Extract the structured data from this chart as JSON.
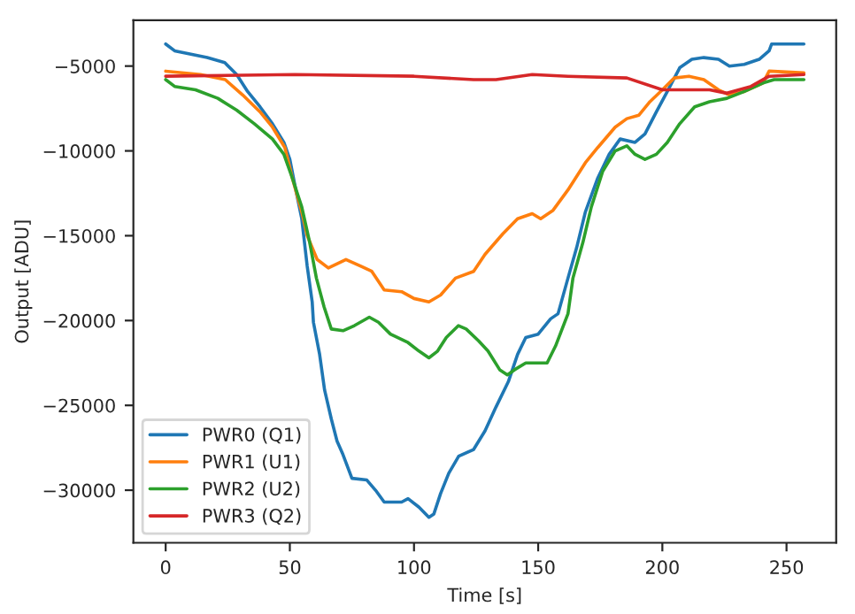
{
  "chart_data": {
    "type": "line",
    "xlabel": "Time [s]",
    "ylabel": "Output [ADU]",
    "xlim": [
      -13,
      270
    ],
    "xticks": [
      0,
      50,
      100,
      150,
      200,
      250
    ],
    "ylim": [
      -33100,
      -2300
    ],
    "yticks": [
      {
        "value": -30000,
        "label": "−30000"
      },
      {
        "value": -25000,
        "label": "−25000"
      },
      {
        "value": -20000,
        "label": "−20000"
      },
      {
        "value": -15000,
        "label": "−15000"
      },
      {
        "value": -10000,
        "label": "−10000"
      },
      {
        "value": -5000,
        "label": "−5000"
      }
    ],
    "grid": false,
    "legend": "bottom left",
    "series": [
      {
        "name": "PWR0 (Q1)",
        "color": "#1f77b4",
        "x": [
          0,
          3.6,
          16.7,
          23.8,
          28.6,
          33,
          38,
          43,
          47.6,
          50,
          52.4,
          54.8,
          57,
          59,
          59.5,
          62,
          64,
          66.7,
          69,
          71.4,
          75,
          81,
          84.5,
          88,
          95,
          97.6,
          102,
          106,
          108,
          110.7,
          114,
          118,
          124,
          128.6,
          133,
          138,
          141.7,
          145,
          150,
          155,
          158,
          162,
          165.5,
          169,
          174,
          178.6,
          183,
          189,
          193,
          197.6,
          202,
          207,
          211.9,
          216.7,
          222.6,
          227,
          233,
          239,
          243,
          244,
          257
        ],
        "values": [
          -3700,
          -4100,
          -4500,
          -4800,
          -5500,
          -6500,
          -7400,
          -8400,
          -9500,
          -10500,
          -12300,
          -14000,
          -16800,
          -18900,
          -20100,
          -22000,
          -24100,
          -25800,
          -27100,
          -27900,
          -29300,
          -29400,
          -30000,
          -30700,
          -30700,
          -30500,
          -31000,
          -31600,
          -31400,
          -30200,
          -29000,
          -28000,
          -27600,
          -26500,
          -25100,
          -23600,
          -22000,
          -21000,
          -20800,
          -19900,
          -19600,
          -17500,
          -15700,
          -13600,
          -11600,
          -10200,
          -9300,
          -9500,
          -9000,
          -7700,
          -6500,
          -5100,
          -4600,
          -4500,
          -4600,
          -5000,
          -4900,
          -4600,
          -4100,
          -3700,
          -3700
        ]
      },
      {
        "name": "PWR1 (U1)",
        "color": "#ff7f0e",
        "x": [
          0,
          14,
          24,
          31,
          38,
          43,
          48,
          51,
          55,
          57,
          61,
          65.5,
          72.6,
          78.6,
          83,
          88,
          95,
          100,
          106,
          110.7,
          116.7,
          124,
          128.6,
          135.7,
          141.7,
          147.6,
          151,
          156,
          162,
          169,
          174,
          181,
          185.7,
          190.5,
          195,
          200,
          204.8,
          210.7,
          216.7,
          222.6,
          227,
          233,
          240.5,
          243,
          257
        ],
        "values": [
          -5300,
          -5500,
          -5800,
          -6700,
          -7700,
          -8600,
          -9800,
          -11600,
          -13700,
          -15000,
          -16400,
          -16900,
          -16400,
          -16800,
          -17100,
          -18200,
          -18300,
          -18700,
          -18900,
          -18500,
          -17500,
          -17100,
          -16100,
          -14900,
          -14000,
          -13700,
          -14000,
          -13500,
          -12300,
          -10700,
          -9800,
          -8600,
          -8100,
          -7900,
          -7100,
          -6400,
          -5700,
          -5600,
          -5800,
          -6400,
          -6700,
          -6500,
          -6000,
          -5300,
          -5400
        ]
      },
      {
        "name": "PWR2 (U2)",
        "color": "#2ca02c",
        "x": [
          0,
          3.6,
          12,
          21,
          28.6,
          35.7,
          43,
          47.6,
          51,
          54.8,
          58,
          60.7,
          63.8,
          66.7,
          71.4,
          76,
          82,
          85.7,
          90.5,
          97.6,
          102,
          106,
          109.5,
          113,
          117.9,
          121,
          126,
          129.8,
          134.5,
          137.6,
          140.5,
          145,
          153.6,
          157,
          162,
          164,
          168,
          171.4,
          176,
          181,
          185.7,
          189,
          193,
          197.6,
          202,
          207,
          213,
          219,
          226,
          233,
          240.5,
          245,
          257
        ],
        "values": [
          -5800,
          -6200,
          -6400,
          -6900,
          -7600,
          -8400,
          -9300,
          -10200,
          -11600,
          -13300,
          -15400,
          -17500,
          -19200,
          -20500,
          -20600,
          -20300,
          -19800,
          -20100,
          -20800,
          -21300,
          -21800,
          -22200,
          -21800,
          -21000,
          -20300,
          -20500,
          -21200,
          -21800,
          -22900,
          -23200,
          -22900,
          -22500,
          -22500,
          -21500,
          -19600,
          -17500,
          -15400,
          -13300,
          -11200,
          -10000,
          -9700,
          -10200,
          -10500,
          -10200,
          -9500,
          -8400,
          -7400,
          -7100,
          -6900,
          -6500,
          -6000,
          -5800,
          -5800
        ]
      },
      {
        "name": "PWR3 (Q2)",
        "color": "#d62728",
        "x": [
          0,
          52,
          100,
          124,
          133,
          147.6,
          162,
          185.7,
          200,
          209.5,
          219,
          226,
          235.7,
          243,
          257
        ],
        "values": [
          -5600,
          -5500,
          -5600,
          -5800,
          -5800,
          -5500,
          -5600,
          -5700,
          -6400,
          -6400,
          -6400,
          -6600,
          -6200,
          -5600,
          -5500
        ]
      }
    ]
  }
}
